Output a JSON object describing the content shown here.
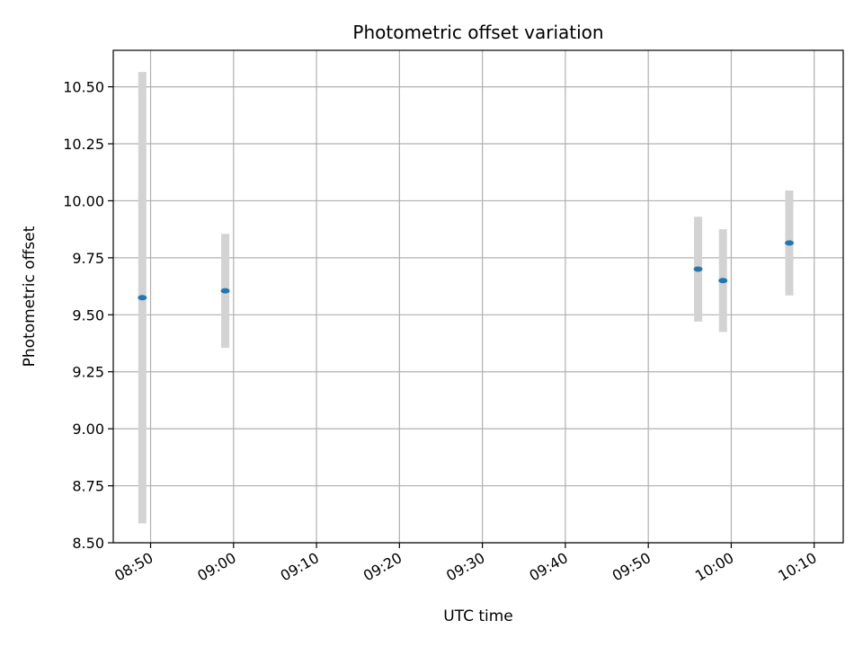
{
  "chart_data": {
    "type": "scatter",
    "title": "Photometric offset variation",
    "xlabel": "UTC time",
    "ylabel": "Photometric offset",
    "xlim": [
      "08:45:30",
      "10:13:30"
    ],
    "ylim": [
      8.5,
      10.66
    ],
    "x_ticks": [
      "08:50",
      "09:00",
      "09:10",
      "09:20",
      "09:30",
      "09:40",
      "09:50",
      "10:00",
      "10:10"
    ],
    "y_ticks": [
      "8.50",
      "8.75",
      "9.00",
      "9.25",
      "9.50",
      "9.75",
      "10.00",
      "10.25",
      "10.50"
    ],
    "grid": true,
    "series": [
      {
        "x": [
          "08:49",
          "08:59",
          "09:56",
          "09:59",
          "10:07"
        ],
        "y": [
          9.575,
          9.605,
          9.7,
          9.65,
          9.815
        ],
        "yerr": [
          0.99,
          0.25,
          0.23,
          0.225,
          0.23
        ]
      }
    ],
    "colors": {
      "marker": "#1f77b4",
      "errorbar": "#d3d3d3",
      "grid": "#b0b0b0",
      "axes": "#000000"
    }
  }
}
